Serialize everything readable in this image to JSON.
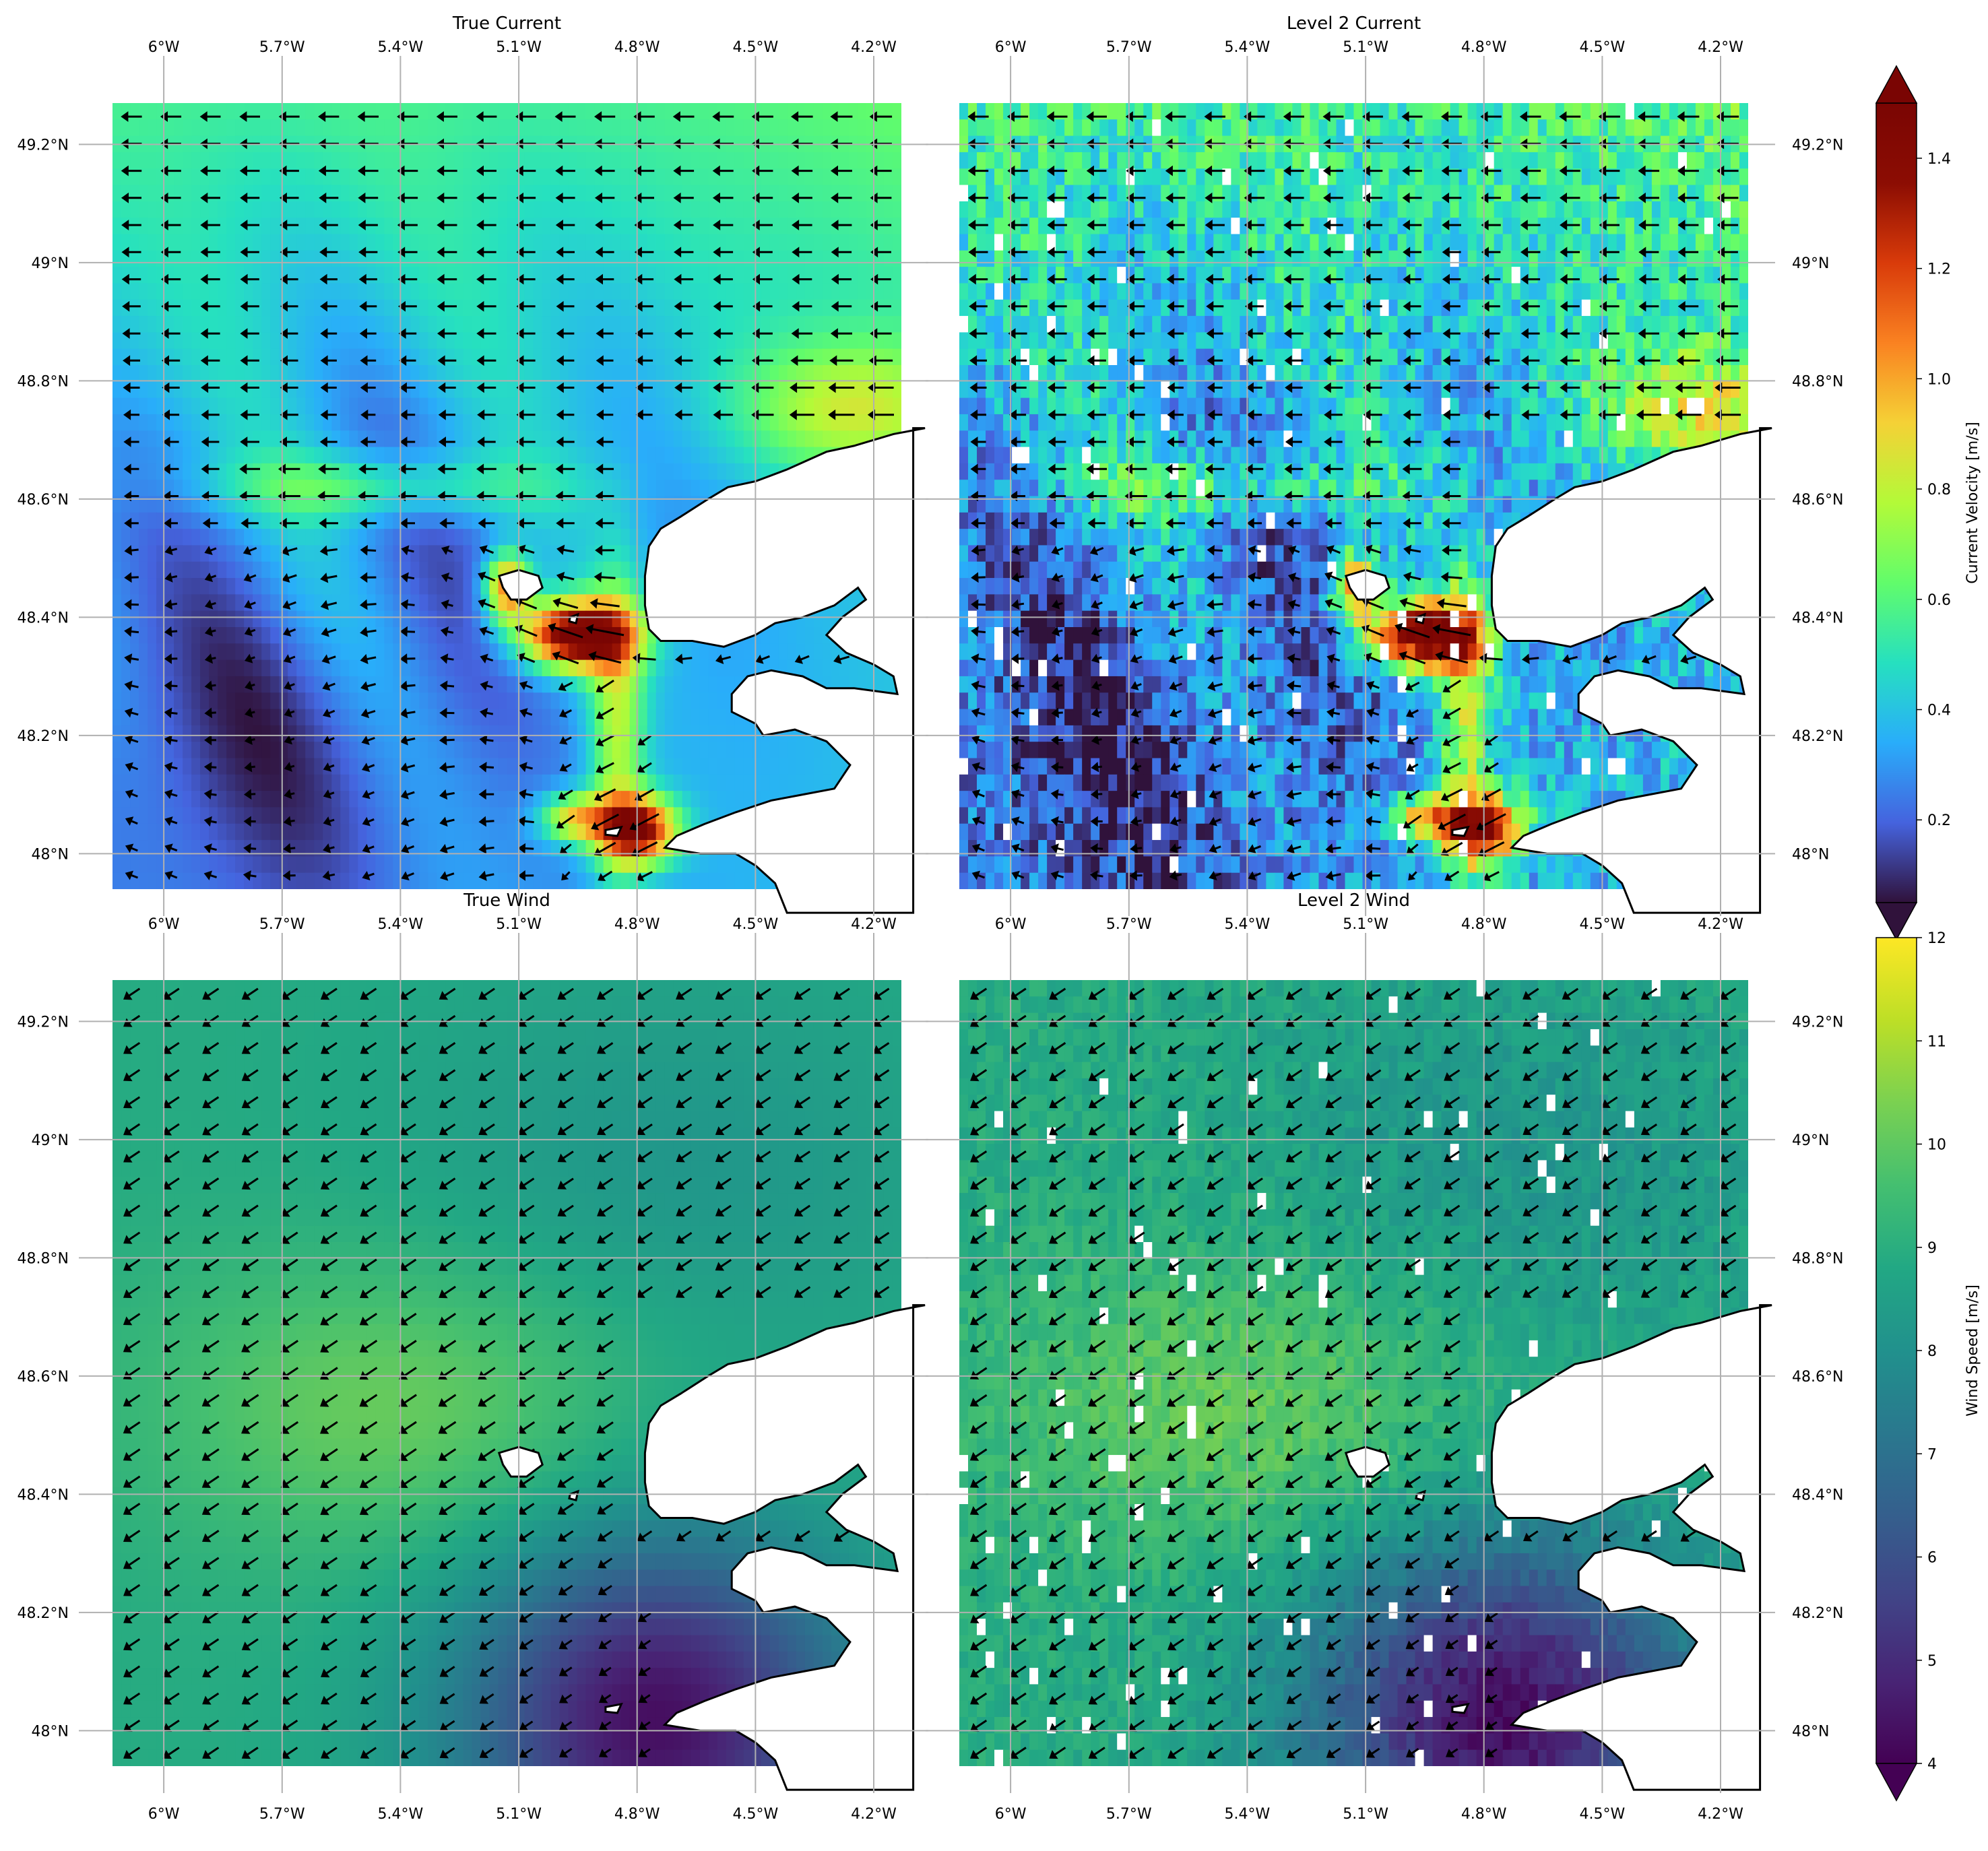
{
  "figure": {
    "panels": [
      {
        "title": "True Current",
        "kind": "current",
        "noise": false
      },
      {
        "title": "Level 2 Current",
        "kind": "current",
        "noise": true
      },
      {
        "title": "True Wind",
        "kind": "wind",
        "noise": false
      },
      {
        "title": "Level 2 Wind",
        "kind": "wind",
        "noise": true
      }
    ],
    "colorbars": [
      {
        "label": "Current Velocity [m/s]",
        "colormap": "turbo",
        "range": [
          0.05,
          1.5
        ],
        "ticks": [
          "0.2",
          "0.4",
          "0.6",
          "0.8",
          "1.0",
          "1.2",
          "1.4"
        ],
        "tick_values": [
          0.2,
          0.4,
          0.6,
          0.8,
          1.0,
          1.2,
          1.4
        ],
        "extend": "both"
      },
      {
        "label": "Wind Speed [m/s]",
        "colormap": "viridis",
        "range": [
          4,
          12
        ],
        "ticks": [
          "4",
          "5",
          "6",
          "7",
          "8",
          "9",
          "10",
          "11",
          "12"
        ],
        "tick_values": [
          4,
          5,
          6,
          7,
          8,
          9,
          10,
          11,
          12
        ],
        "extend": "min"
      }
    ],
    "lon_ticks": [
      "6°W",
      "5.7°W",
      "5.4°W",
      "5.1°W",
      "4.8°W",
      "4.5°W",
      "4.2°W"
    ],
    "lon_tick_values": [
      -6.0,
      -5.7,
      -5.4,
      -5.1,
      -4.8,
      -4.5,
      -4.2
    ],
    "lat_ticks": [
      "48°N",
      "48.2°N",
      "48.4°N",
      "48.6°N",
      "48.8°N",
      "49°N",
      "49.2°N"
    ],
    "lat_tick_values": [
      48.0,
      48.2,
      48.4,
      48.6,
      48.8,
      49.0,
      49.2
    ],
    "colors": {
      "land": "#ffffff",
      "coastline": "#000000",
      "gridlines": "#b0b0b0",
      "arrows": "#000000"
    }
  },
  "chart_data": [
    {
      "type": "heatmap",
      "title": "True Current",
      "field": "surface current velocity with vectors",
      "unit": "m/s",
      "lon_range": [
        -6.13,
        -4.13
      ],
      "lat_range": [
        47.94,
        49.27
      ],
      "color_range": [
        0.05,
        1.5
      ],
      "features": {
        "max_speed_zone": "Iroise / Ouessant passage near 5.0°W 48.38°N, >1.4 m/s",
        "secondary_max": "Raz de Sein near 4.8°W 48.04°N, ~1.3 m/s",
        "background": "0.2–0.5 m/s, westward flow in the north"
      }
    },
    {
      "type": "heatmap",
      "title": "Level 2 Current",
      "field": "retrieved current velocity (noisy, gaps)",
      "unit": "m/s",
      "lon_range": [
        -6.13,
        -4.13
      ],
      "lat_range": [
        47.94,
        49.27
      ],
      "color_range": [
        0.05,
        1.5
      ]
    },
    {
      "type": "heatmap",
      "title": "True Wind",
      "field": "wind speed with vectors (from north-east)",
      "unit": "m/s",
      "lon_range": [
        -6.13,
        -4.13
      ],
      "lat_range": [
        47.94,
        49.27
      ],
      "color_range": [
        4,
        12
      ],
      "features": {
        "max_speed_zone": "around 5.4°W 48.55°N, ~10 m/s",
        "min_speed_zone": "south-east near 4.9°W 48.1°N, ~4 m/s",
        "background": "~8.5–9 m/s"
      }
    },
    {
      "type": "heatmap",
      "title": "Level 2 Wind",
      "field": "retrieved wind speed (noisy, gaps)",
      "unit": "m/s",
      "lon_range": [
        -6.13,
        -4.13
      ],
      "lat_range": [
        47.94,
        49.27
      ],
      "color_range": [
        4,
        12
      ]
    }
  ]
}
